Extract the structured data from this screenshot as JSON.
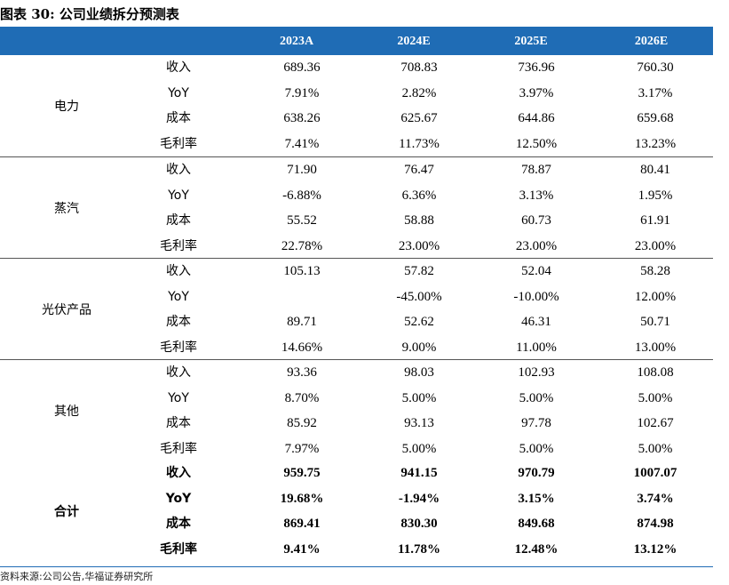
{
  "title": "图表 30:  公司业绩拆分预测表",
  "header": {
    "years": [
      "2023A",
      "2024E",
      "2025E",
      "2026E"
    ]
  },
  "segments": [
    {
      "name": "电力",
      "bold": false,
      "rows": [
        {
          "metric": "收入",
          "values": [
            "689.36",
            "708.83",
            "736.96",
            "760.30"
          ]
        },
        {
          "metric": "YoY",
          "values": [
            "7.91%",
            "2.82%",
            "3.97%",
            "3.17%"
          ]
        },
        {
          "metric": "成本",
          "values": [
            "638.26",
            "625.67",
            "644.86",
            "659.68"
          ]
        },
        {
          "metric": "毛利率",
          "values": [
            "7.41%",
            "11.73%",
            "12.50%",
            "13.23%"
          ]
        }
      ]
    },
    {
      "name": "蒸汽",
      "bold": false,
      "rows": [
        {
          "metric": "收入",
          "values": [
            "71.90",
            "76.47",
            "78.87",
            "80.41"
          ]
        },
        {
          "metric": "YoY",
          "values": [
            "-6.88%",
            "6.36%",
            "3.13%",
            "1.95%"
          ]
        },
        {
          "metric": "成本",
          "values": [
            "55.52",
            "58.88",
            "60.73",
            "61.91"
          ]
        },
        {
          "metric": "毛利率",
          "values": [
            "22.78%",
            "23.00%",
            "23.00%",
            "23.00%"
          ]
        }
      ]
    },
    {
      "name": "光伏产品",
      "bold": false,
      "rows": [
        {
          "metric": "收入",
          "values": [
            "105.13",
            "57.82",
            "52.04",
            "58.28"
          ]
        },
        {
          "metric": "YoY",
          "values": [
            "",
            "-45.00%",
            "-10.00%",
            "12.00%"
          ]
        },
        {
          "metric": "成本",
          "values": [
            "89.71",
            "52.62",
            "46.31",
            "50.71"
          ]
        },
        {
          "metric": "毛利率",
          "values": [
            "14.66%",
            "9.00%",
            "11.00%",
            "13.00%"
          ]
        }
      ]
    },
    {
      "name": "其他",
      "bold": false,
      "rows": [
        {
          "metric": "收入",
          "values": [
            "93.36",
            "98.03",
            "102.93",
            "108.08"
          ]
        },
        {
          "metric": "YoY",
          "values": [
            "8.70%",
            "5.00%",
            "5.00%",
            "5.00%"
          ]
        },
        {
          "metric": "成本",
          "values": [
            "85.92",
            "93.13",
            "97.78",
            "102.67"
          ]
        },
        {
          "metric": "毛利率",
          "values": [
            "7.97%",
            "5.00%",
            "5.00%",
            "5.00%"
          ]
        }
      ]
    },
    {
      "name": "合计",
      "bold": true,
      "rows": [
        {
          "metric": "收入",
          "values": [
            "959.75",
            "941.15",
            "970.79",
            "1007.07"
          ]
        },
        {
          "metric": "YoY",
          "values": [
            "19.68%",
            "-1.94%",
            "3.15%",
            "3.74%"
          ]
        },
        {
          "metric": "成本",
          "values": [
            "869.41",
            "830.30",
            "849.68",
            "874.98"
          ]
        },
        {
          "metric": "毛利率",
          "values": [
            "9.41%",
            "11.78%",
            "12.48%",
            "13.12%"
          ]
        }
      ]
    }
  ],
  "source": "资料来源:公司公告,华福证券研究所",
  "colors": {
    "header_bg": "#1f6cb5",
    "header_text": "#ffffff"
  }
}
